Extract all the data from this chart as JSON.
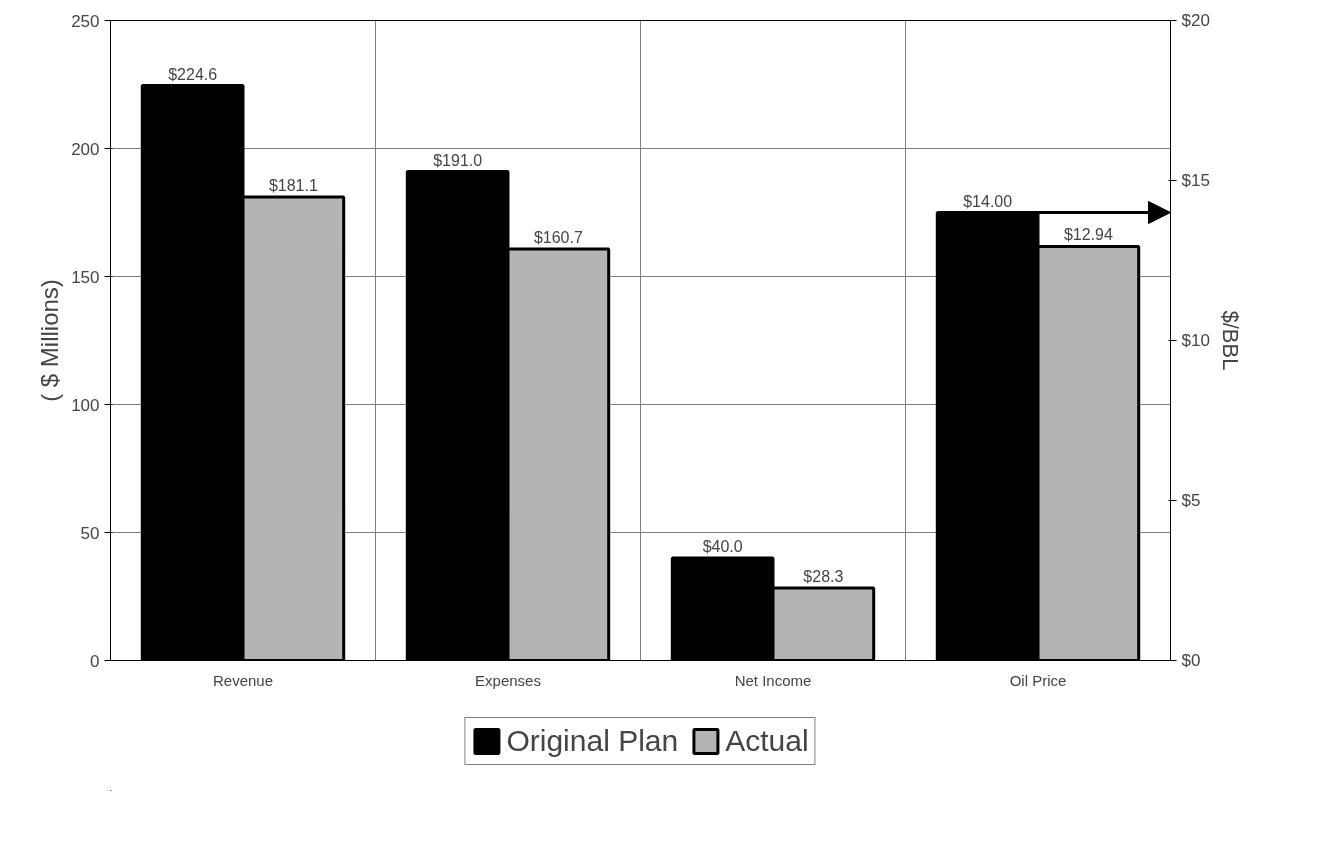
{
  "chart_data": {
    "type": "bar",
    "ylabel": "( $ Millions)",
    "y2label": "$/BBL",
    "categories": [
      "Revenue",
      "Expenses",
      "Net Income",
      "Oil Price"
    ],
    "series": [
      {
        "name": "Original Plan",
        "color": "#000000",
        "values": [
          224.6,
          191.0,
          40.0,
          null
        ],
        "value_labels": [
          "$224.6",
          "$191.0",
          "$40.0",
          null
        ]
      },
      {
        "name": "Actual",
        "color": "#b4b4b4",
        "values": [
          181.1,
          160.7,
          28.3,
          null
        ],
        "value_labels": [
          "$181.1",
          "$160.7",
          "$28.3",
          null
        ]
      },
      {
        "color": "#000000",
        "axis": "y2",
        "values": [
          null,
          null,
          null,
          14.0
        ],
        "value_labels": [
          null,
          null,
          null,
          "$14.00"
        ]
      },
      {
        "color": "#b4b4b4",
        "axis": "y2",
        "values": [
          null,
          null,
          null,
          12.94
        ],
        "value_labels": [
          null,
          null,
          null,
          "$12.94"
        ]
      }
    ],
    "ylim": [
      0,
      250
    ],
    "yticks": [
      0,
      50,
      100,
      150,
      200,
      250
    ],
    "y2lim": [
      0,
      20
    ],
    "y2ticks": [
      {
        "value": 0,
        "label": "$0"
      },
      {
        "value": 5,
        "label": "$5"
      },
      {
        "value": 10,
        "label": "$10"
      },
      {
        "value": 15,
        "label": "$15"
      },
      {
        "value": 20,
        "label": "$20"
      }
    ],
    "grid": true,
    "legend": "bottom"
  }
}
